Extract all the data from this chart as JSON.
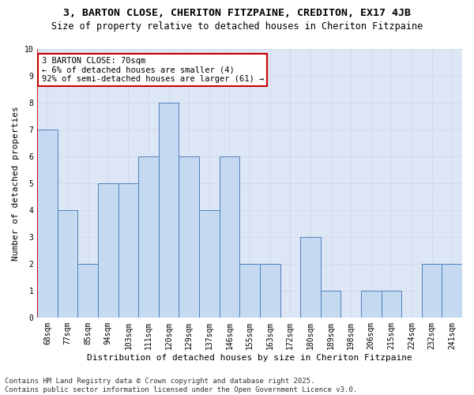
{
  "title_line1": "3, BARTON CLOSE, CHERITON FITZPAINE, CREDITON, EX17 4JB",
  "title_line2": "Size of property relative to detached houses in Cheriton Fitzpaine",
  "xlabel": "Distribution of detached houses by size in Cheriton Fitzpaine",
  "ylabel": "Number of detached properties",
  "categories": [
    "68sqm",
    "77sqm",
    "85sqm",
    "94sqm",
    "103sqm",
    "111sqm",
    "120sqm",
    "129sqm",
    "137sqm",
    "146sqm",
    "155sqm",
    "163sqm",
    "172sqm",
    "180sqm",
    "189sqm",
    "198sqm",
    "206sqm",
    "215sqm",
    "224sqm",
    "232sqm",
    "241sqm"
  ],
  "values": [
    7,
    4,
    2,
    5,
    5,
    6,
    8,
    6,
    4,
    6,
    2,
    2,
    0,
    3,
    1,
    0,
    1,
    1,
    0,
    2,
    2
  ],
  "bar_color": "#c5d9f1",
  "bar_edge_color": "#4f81bd",
  "annotation_box_color": "#ffffff",
  "annotation_box_edge": "#cc0000",
  "annotation_text_line1": "3 BARTON CLOSE: 70sqm",
  "annotation_text_line2": "← 6% of detached houses are smaller (4)",
  "annotation_text_line3": "92% of semi-detached houses are larger (61) →",
  "ylim": [
    0,
    10
  ],
  "yticks": [
    0,
    1,
    2,
    3,
    4,
    5,
    6,
    7,
    8,
    9,
    10
  ],
  "grid_color": "#d0d8e8",
  "background_color": "#dce6f5",
  "footnote": "Contains HM Land Registry data © Crown copyright and database right 2025.\nContains public sector information licensed under the Open Government Licence v3.0.",
  "title_fontsize": 9.5,
  "subtitle_fontsize": 8.5,
  "xlabel_fontsize": 8,
  "ylabel_fontsize": 8,
  "tick_fontsize": 7,
  "annotation_fontsize": 7.5,
  "footnote_fontsize": 6.5
}
